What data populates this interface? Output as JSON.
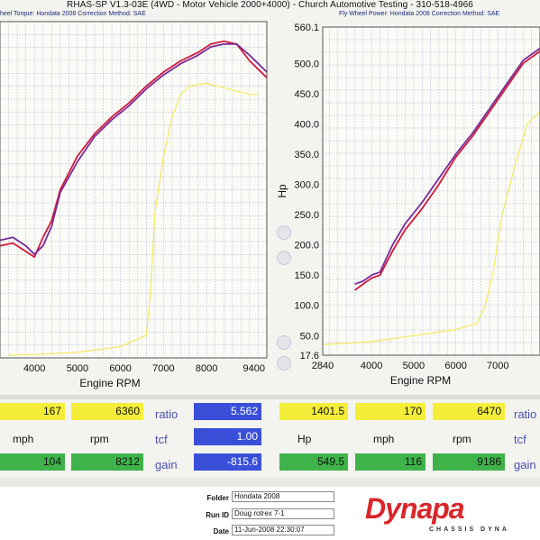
{
  "header": {
    "title": "RHAS-SP V1.3-03E  (4WD - Motor Vehicle 2000+4000) - Church Automotive Testing - 310-518-4966",
    "left_sub": "heel Torque: Hondata 2008      Correction Method: SAE",
    "right_sub": "Fly Wheel Power: Hondata 2008      Correction Method: SAE"
  },
  "chart_data": [
    {
      "type": "line",
      "title": "",
      "xlabel": "Engine RPM",
      "ylabel": "",
      "xlim": [
        3200,
        9400
      ],
      "ylim": [
        0,
        600
      ],
      "x_ticks": [
        "4000",
        "5000",
        "6000",
        "7000",
        "8000",
        "9400"
      ],
      "grid": true,
      "series": [
        {
          "color": "#d01a3a",
          "x": [
            3200,
            3500,
            3800,
            4000,
            4200,
            4400,
            4600,
            5000,
            5400,
            5800,
            6200,
            6600,
            7000,
            7400,
            7800,
            8100,
            8400,
            8700,
            9000,
            9400
          ],
          "y": [
            200,
            205,
            190,
            180,
            215,
            245,
            300,
            360,
            400,
            430,
            455,
            485,
            510,
            530,
            545,
            560,
            565,
            560,
            530,
            500
          ]
        },
        {
          "color": "#7a2a9a",
          "x": [
            3200,
            3500,
            3800,
            4000,
            4200,
            4400,
            4600,
            5000,
            5400,
            5800,
            6200,
            6600,
            7000,
            7400,
            7800,
            8100,
            8400,
            8700,
            9000,
            9400
          ],
          "y": [
            210,
            215,
            200,
            185,
            200,
            235,
            295,
            350,
            395,
            425,
            450,
            480,
            505,
            525,
            540,
            555,
            560,
            560,
            540,
            510
          ]
        },
        {
          "color": "#f3ea58",
          "x": [
            3400,
            4000,
            5000,
            6000,
            6600,
            6700,
            6800,
            7000,
            7200,
            7400,
            7600,
            8000,
            8500,
            9000,
            9200
          ],
          "y": [
            5,
            6,
            10,
            20,
            40,
            120,
            260,
            360,
            430,
            470,
            485,
            490,
            480,
            470,
            470
          ]
        }
      ]
    },
    {
      "type": "line",
      "title": "",
      "xlabel": "Engine RPM",
      "ylabel": "Hp",
      "xlim": [
        2840,
        8000
      ],
      "ylim": [
        17.6,
        560.1
      ],
      "x_ticks": [
        "2840",
        "4000",
        "5000",
        "6000",
        "7000"
      ],
      "y_ticks": [
        "17.6",
        "50.0",
        "100.0",
        "150.0",
        "200.0",
        "250.0",
        "300.0",
        "350.0",
        "400.0",
        "450.0",
        "500.0",
        "560.1"
      ],
      "grid": true,
      "series": [
        {
          "color": "#d01a3a",
          "x": [
            3600,
            3800,
            4000,
            4200,
            4500,
            4800,
            5200,
            5600,
            6000,
            6400,
            6800,
            7200,
            7600,
            8000
          ],
          "y": [
            125,
            135,
            145,
            150,
            190,
            225,
            260,
            300,
            345,
            380,
            420,
            460,
            500,
            520
          ]
        },
        {
          "color": "#7a2a9a",
          "x": [
            3600,
            3800,
            4000,
            4200,
            4500,
            4800,
            5200,
            5600,
            6000,
            6400,
            6800,
            7200,
            7600,
            8000
          ],
          "y": [
            135,
            140,
            150,
            155,
            200,
            235,
            270,
            310,
            350,
            385,
            425,
            465,
            505,
            525
          ]
        },
        {
          "color": "#f3ea58",
          "x": [
            2840,
            4000,
            5000,
            6000,
            6500,
            6700,
            6900,
            7100,
            7400,
            7700,
            8000
          ],
          "y": [
            35,
            40,
            50,
            60,
            70,
            100,
            160,
            250,
            330,
            400,
            420
          ]
        }
      ]
    }
  ],
  "readouts": {
    "left": {
      "row1": [
        "167",
        "6360"
      ],
      "row2": [
        "mph",
        "rpm"
      ],
      "row3": [
        "104",
        "8212"
      ]
    },
    "mid": {
      "labels": [
        "ratio",
        "tcf",
        "gain"
      ],
      "values": [
        "5.562",
        "1.00",
        "-815.6"
      ]
    },
    "right": {
      "row1": [
        "1401.5",
        "170",
        "6470"
      ],
      "row2": [
        "Hp",
        "mph",
        "rpm"
      ],
      "row3": [
        "549.5",
        "116",
        "9186"
      ],
      "labels": [
        "ratio",
        "tcf",
        "gain"
      ]
    }
  },
  "footer": {
    "folder_label": "Folder",
    "folder_value": "Hondata 2008",
    "runid_label": "Run ID",
    "runid_value": "Doug rotrex 7-1",
    "date_label": "Date",
    "date_value": "11-Jun-2008  22:30:07",
    "logo_text": "Dynapa",
    "logo_sub": "CHASSIS   DYNA"
  }
}
